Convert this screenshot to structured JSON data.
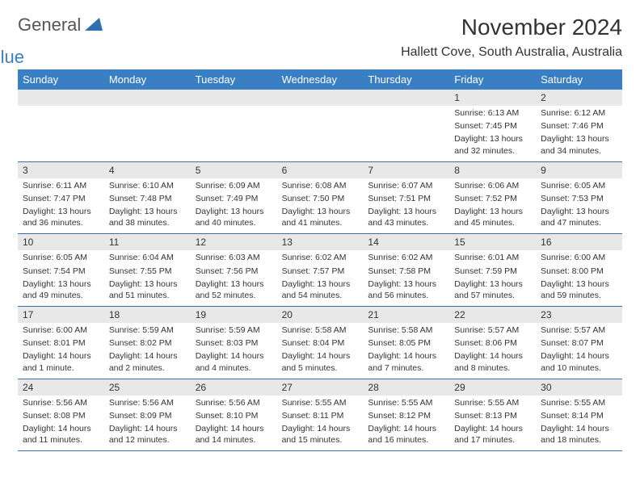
{
  "logo": {
    "text1": "General",
    "text2": "Blue",
    "iconColor": "#2f6fb0"
  },
  "header": {
    "monthTitle": "November 2024",
    "location": "Hallett Cove, South Australia, Australia"
  },
  "colors": {
    "headerBar": "#3a7fc4",
    "weekDivider": "#3a6fa8",
    "dayNumBg": "#e8e8e8",
    "background": "#ffffff",
    "text": "#333333"
  },
  "dayNames": [
    "Sunday",
    "Monday",
    "Tuesday",
    "Wednesday",
    "Thursday",
    "Friday",
    "Saturday"
  ],
  "weeks": [
    [
      {
        "num": "",
        "sunrise": "",
        "sunset": "",
        "daylight": ""
      },
      {
        "num": "",
        "sunrise": "",
        "sunset": "",
        "daylight": ""
      },
      {
        "num": "",
        "sunrise": "",
        "sunset": "",
        "daylight": ""
      },
      {
        "num": "",
        "sunrise": "",
        "sunset": "",
        "daylight": ""
      },
      {
        "num": "",
        "sunrise": "",
        "sunset": "",
        "daylight": ""
      },
      {
        "num": "1",
        "sunrise": "Sunrise: 6:13 AM",
        "sunset": "Sunset: 7:45 PM",
        "daylight": "Daylight: 13 hours and 32 minutes."
      },
      {
        "num": "2",
        "sunrise": "Sunrise: 6:12 AM",
        "sunset": "Sunset: 7:46 PM",
        "daylight": "Daylight: 13 hours and 34 minutes."
      }
    ],
    [
      {
        "num": "3",
        "sunrise": "Sunrise: 6:11 AM",
        "sunset": "Sunset: 7:47 PM",
        "daylight": "Daylight: 13 hours and 36 minutes."
      },
      {
        "num": "4",
        "sunrise": "Sunrise: 6:10 AM",
        "sunset": "Sunset: 7:48 PM",
        "daylight": "Daylight: 13 hours and 38 minutes."
      },
      {
        "num": "5",
        "sunrise": "Sunrise: 6:09 AM",
        "sunset": "Sunset: 7:49 PM",
        "daylight": "Daylight: 13 hours and 40 minutes."
      },
      {
        "num": "6",
        "sunrise": "Sunrise: 6:08 AM",
        "sunset": "Sunset: 7:50 PM",
        "daylight": "Daylight: 13 hours and 41 minutes."
      },
      {
        "num": "7",
        "sunrise": "Sunrise: 6:07 AM",
        "sunset": "Sunset: 7:51 PM",
        "daylight": "Daylight: 13 hours and 43 minutes."
      },
      {
        "num": "8",
        "sunrise": "Sunrise: 6:06 AM",
        "sunset": "Sunset: 7:52 PM",
        "daylight": "Daylight: 13 hours and 45 minutes."
      },
      {
        "num": "9",
        "sunrise": "Sunrise: 6:05 AM",
        "sunset": "Sunset: 7:53 PM",
        "daylight": "Daylight: 13 hours and 47 minutes."
      }
    ],
    [
      {
        "num": "10",
        "sunrise": "Sunrise: 6:05 AM",
        "sunset": "Sunset: 7:54 PM",
        "daylight": "Daylight: 13 hours and 49 minutes."
      },
      {
        "num": "11",
        "sunrise": "Sunrise: 6:04 AM",
        "sunset": "Sunset: 7:55 PM",
        "daylight": "Daylight: 13 hours and 51 minutes."
      },
      {
        "num": "12",
        "sunrise": "Sunrise: 6:03 AM",
        "sunset": "Sunset: 7:56 PM",
        "daylight": "Daylight: 13 hours and 52 minutes."
      },
      {
        "num": "13",
        "sunrise": "Sunrise: 6:02 AM",
        "sunset": "Sunset: 7:57 PM",
        "daylight": "Daylight: 13 hours and 54 minutes."
      },
      {
        "num": "14",
        "sunrise": "Sunrise: 6:02 AM",
        "sunset": "Sunset: 7:58 PM",
        "daylight": "Daylight: 13 hours and 56 minutes."
      },
      {
        "num": "15",
        "sunrise": "Sunrise: 6:01 AM",
        "sunset": "Sunset: 7:59 PM",
        "daylight": "Daylight: 13 hours and 57 minutes."
      },
      {
        "num": "16",
        "sunrise": "Sunrise: 6:00 AM",
        "sunset": "Sunset: 8:00 PM",
        "daylight": "Daylight: 13 hours and 59 minutes."
      }
    ],
    [
      {
        "num": "17",
        "sunrise": "Sunrise: 6:00 AM",
        "sunset": "Sunset: 8:01 PM",
        "daylight": "Daylight: 14 hours and 1 minute."
      },
      {
        "num": "18",
        "sunrise": "Sunrise: 5:59 AM",
        "sunset": "Sunset: 8:02 PM",
        "daylight": "Daylight: 14 hours and 2 minutes."
      },
      {
        "num": "19",
        "sunrise": "Sunrise: 5:59 AM",
        "sunset": "Sunset: 8:03 PM",
        "daylight": "Daylight: 14 hours and 4 minutes."
      },
      {
        "num": "20",
        "sunrise": "Sunrise: 5:58 AM",
        "sunset": "Sunset: 8:04 PM",
        "daylight": "Daylight: 14 hours and 5 minutes."
      },
      {
        "num": "21",
        "sunrise": "Sunrise: 5:58 AM",
        "sunset": "Sunset: 8:05 PM",
        "daylight": "Daylight: 14 hours and 7 minutes."
      },
      {
        "num": "22",
        "sunrise": "Sunrise: 5:57 AM",
        "sunset": "Sunset: 8:06 PM",
        "daylight": "Daylight: 14 hours and 8 minutes."
      },
      {
        "num": "23",
        "sunrise": "Sunrise: 5:57 AM",
        "sunset": "Sunset: 8:07 PM",
        "daylight": "Daylight: 14 hours and 10 minutes."
      }
    ],
    [
      {
        "num": "24",
        "sunrise": "Sunrise: 5:56 AM",
        "sunset": "Sunset: 8:08 PM",
        "daylight": "Daylight: 14 hours and 11 minutes."
      },
      {
        "num": "25",
        "sunrise": "Sunrise: 5:56 AM",
        "sunset": "Sunset: 8:09 PM",
        "daylight": "Daylight: 14 hours and 12 minutes."
      },
      {
        "num": "26",
        "sunrise": "Sunrise: 5:56 AM",
        "sunset": "Sunset: 8:10 PM",
        "daylight": "Daylight: 14 hours and 14 minutes."
      },
      {
        "num": "27",
        "sunrise": "Sunrise: 5:55 AM",
        "sunset": "Sunset: 8:11 PM",
        "daylight": "Daylight: 14 hours and 15 minutes."
      },
      {
        "num": "28",
        "sunrise": "Sunrise: 5:55 AM",
        "sunset": "Sunset: 8:12 PM",
        "daylight": "Daylight: 14 hours and 16 minutes."
      },
      {
        "num": "29",
        "sunrise": "Sunrise: 5:55 AM",
        "sunset": "Sunset: 8:13 PM",
        "daylight": "Daylight: 14 hours and 17 minutes."
      },
      {
        "num": "30",
        "sunrise": "Sunrise: 5:55 AM",
        "sunset": "Sunset: 8:14 PM",
        "daylight": "Daylight: 14 hours and 18 minutes."
      }
    ]
  ]
}
